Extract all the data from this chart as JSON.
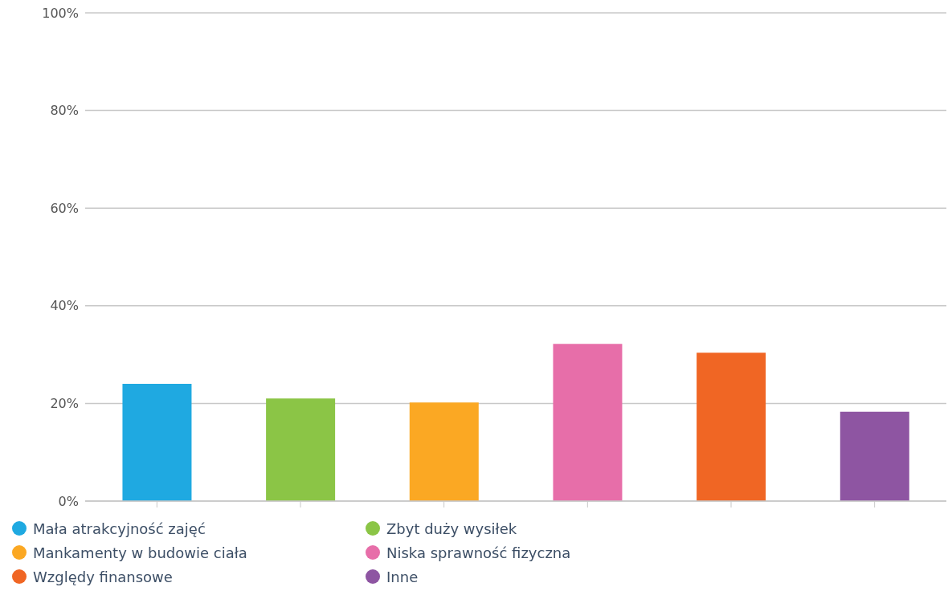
{
  "chart_data": {
    "type": "bar",
    "categories": [
      null,
      null,
      null,
      null,
      null,
      null
    ],
    "series": [
      {
        "name": "Mała atrakcyjność zajęć",
        "color": "#1fa9e1",
        "values": [
          24,
          null,
          null,
          null,
          null,
          null
        ]
      },
      {
        "name": "Zbyt duży wysiłek",
        "color": "#8bc546",
        "values": [
          null,
          21,
          null,
          null,
          null,
          null
        ]
      },
      {
        "name": "Mankamenty w budowie ciała",
        "color": "#fba823",
        "values": [
          null,
          null,
          20.2,
          null,
          null,
          null
        ]
      },
      {
        "name": "Niska sprawność fizyczna",
        "color": "#e76ea9",
        "values": [
          null,
          null,
          null,
          32.2,
          null,
          null
        ]
      },
      {
        "name": "Względy finansowe",
        "color": "#f06624",
        "values": [
          null,
          null,
          null,
          null,
          30.4,
          null
        ]
      },
      {
        "name": "Inne",
        "color": "#8e55a2",
        "values": [
          null,
          null,
          null,
          null,
          null,
          18.3
        ]
      }
    ],
    "ylim": [
      0,
      100
    ],
    "yticks": [
      {
        "value": 0,
        "label": "0%"
      },
      {
        "value": 20,
        "label": "20%"
      },
      {
        "value": 40,
        "label": "40%"
      },
      {
        "value": 60,
        "label": "60%"
      },
      {
        "value": 80,
        "label": "80%"
      },
      {
        "value": 100,
        "label": "100%"
      }
    ],
    "grid": "y",
    "legend": "bottom left"
  }
}
